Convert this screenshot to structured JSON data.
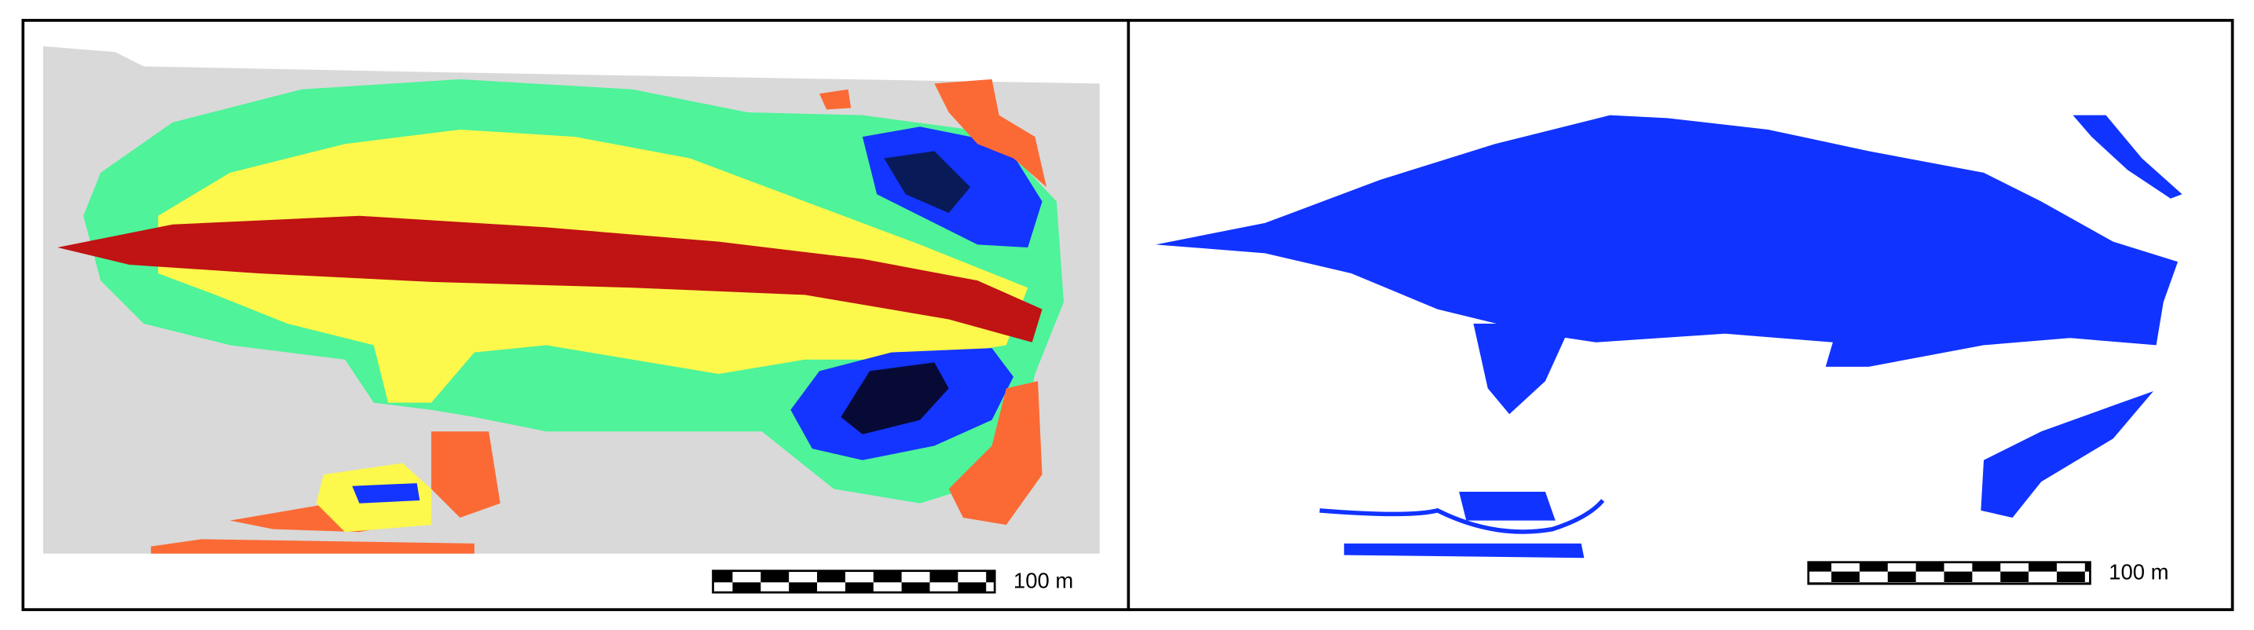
{
  "panels": [
    {
      "scale_label": "100 m"
    },
    {
      "scale_label": "100 m"
    }
  ]
}
